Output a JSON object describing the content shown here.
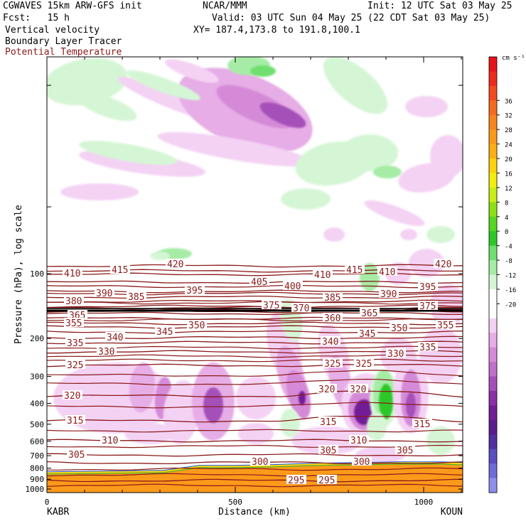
{
  "header": {
    "model": "CGWAVES 15km ARW-GFS init",
    "forecast": "Fcst:   15 h",
    "field1": "Vertical velocity",
    "field2": "Boundary Layer Tracer",
    "field3": "Potential Temperature",
    "org": "NCAR/MMM",
    "valid": "Valid: 03 UTC Sun 04 May 25 (22 CDT Sat 03 May 25)",
    "xy": "XY= 187.4,173.8 to 191.8,100.1",
    "init": "Init: 12 UTC Sat 03 May 25",
    "field3_color": "#8b1a1a"
  },
  "chart_data": {
    "type": "heatmap",
    "ylabel": "Pressure (hPa), log scale",
    "xlabel": "Distance (km)",
    "x_ticks": [
      "0",
      "500",
      "1000"
    ],
    "x_range": [
      0,
      1110
    ],
    "y_ticks": [
      "100",
      "200",
      "300",
      "400",
      "500",
      "600",
      "700",
      "800",
      "900",
      "1000"
    ],
    "y_scale": "log",
    "left_station": "KABR",
    "right_station": "KOUN",
    "colorbar": {
      "unit": "cm s⁻¹",
      "labels": [
        "36",
        "32",
        "28",
        "24",
        "20",
        "16",
        "12",
        "8",
        "4",
        "0",
        "-4",
        "-8",
        "-12",
        "-16",
        "-20"
      ],
      "colors": [
        "#e8121b",
        "#ee2a1c",
        "#f24b1f",
        "#f56a1f",
        "#f7851d",
        "#fb9a1a",
        "#fdb014",
        "#ffd20a",
        "#f4ee10",
        "#c8ee16",
        "#8be014",
        "#55d61f",
        "#2ec72a",
        "#6fdf6f",
        "#a6eca6",
        "#d5f6d5",
        "#ffffff",
        "#ffffff",
        "#f4d2f4",
        "#e6ade6",
        "#d58ad8",
        "#c06fca",
        "#a550b8",
        "#8a2fa5",
        "#721e96",
        "#5c1c8e",
        "#5230a0",
        "#5a4ec0",
        "#6e6cd8",
        "#8c90ea"
      ]
    },
    "theta_labels": [
      "420",
      "415",
      "410",
      "405",
      "400",
      "395",
      "390",
      "385",
      "380",
      "375",
      "370",
      "365",
      "360",
      "355",
      "350",
      "345",
      "340",
      "335",
      "330",
      "325",
      "320",
      "315",
      "310",
      "305",
      "300",
      "295"
    ],
    "series_color": "#8b1a1a"
  }
}
